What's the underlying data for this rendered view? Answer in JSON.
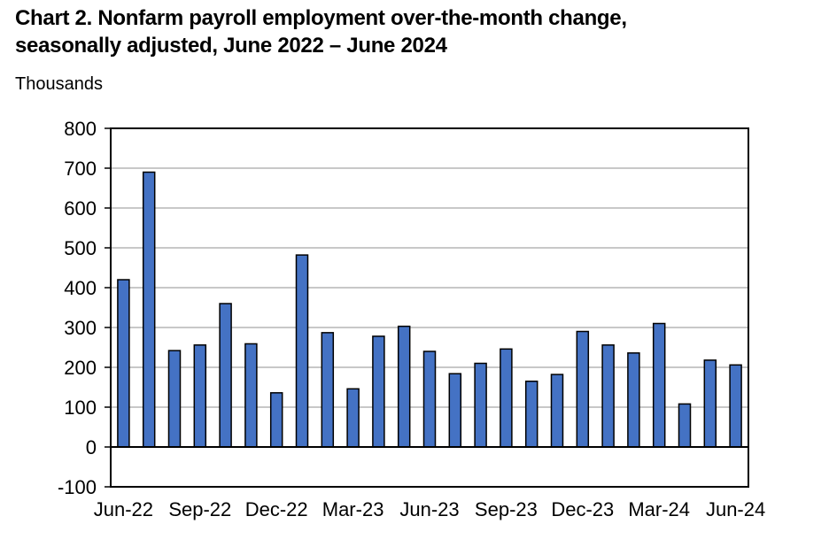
{
  "title": {
    "line1": "Chart 2. Nonfarm payroll employment over-the-month change,",
    "line2": "seasonally adjusted, June 2022 – June 2024"
  },
  "units_label": "Thousands",
  "colors": {
    "bar_fill": "#4472C4",
    "bar_stroke": "#000000",
    "gridline": "#A6A6A6",
    "axis": "#000000",
    "text": "#000000",
    "background": "#FFFFFF"
  },
  "chart_data": {
    "type": "bar",
    "title": "Chart 2. Nonfarm payroll employment over-the-month change, seasonally adjusted, June 2022 – June 2024",
    "ylabel": "Thousands",
    "xlabel": "",
    "categories": [
      "Jun-22",
      "Jul-22",
      "Aug-22",
      "Sep-22",
      "Oct-22",
      "Nov-22",
      "Dec-22",
      "Jan-23",
      "Feb-23",
      "Mar-23",
      "Apr-23",
      "May-23",
      "Jun-23",
      "Jul-23",
      "Aug-23",
      "Sep-23",
      "Oct-23",
      "Nov-23",
      "Dec-23",
      "Jan-24",
      "Feb-24",
      "Mar-24",
      "Apr-24",
      "May-24",
      "Jun-24"
    ],
    "values": [
      420,
      690,
      242,
      256,
      360,
      259,
      136,
      482,
      287,
      146,
      278,
      303,
      240,
      184,
      210,
      246,
      165,
      182,
      290,
      256,
      236,
      310,
      108,
      218,
      206
    ],
    "ylim": [
      -100,
      800
    ],
    "ytick_step": 100,
    "ytick_labels": [
      "800",
      "700",
      "600",
      "500",
      "400",
      "300",
      "200",
      "100",
      "0",
      "-100"
    ],
    "xtick_labels": [
      "Jun-22",
      "Sep-22",
      "Dec-22",
      "Mar-23",
      "Jun-23",
      "Sep-23",
      "Dec-23",
      "Mar-24",
      "Jun-24"
    ],
    "xtick_every": 3,
    "grid": "horizontal",
    "legend": "none"
  }
}
